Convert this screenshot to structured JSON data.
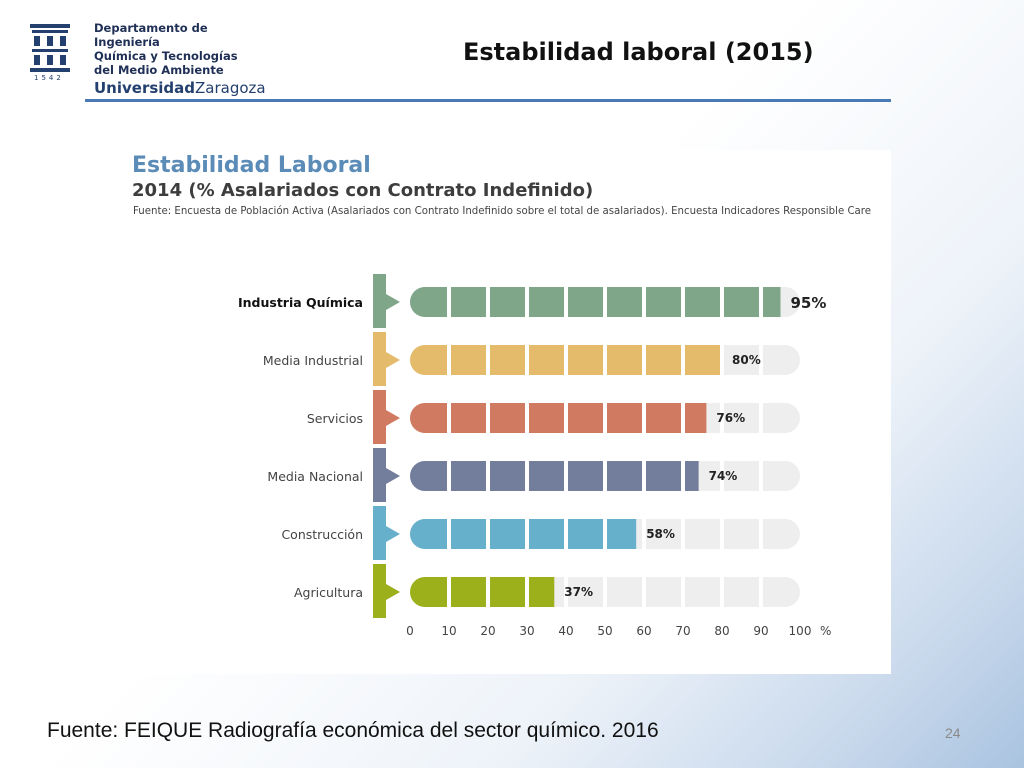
{
  "logo": {
    "lines": [
      "Departamento de Ingeniería",
      "Química y Tecnologías",
      "del Medio Ambiente"
    ],
    "university_bold": "Universidad",
    "university_rest": "Zaragoza",
    "year": "1542"
  },
  "slide": {
    "title": "Estabilidad laboral (2015)",
    "footer": "Fuente: FEIQUE Radiografía económica del sector químico. 2016",
    "page_number": "24"
  },
  "colors": {
    "title_rule": "#4a7ab5",
    "empty_segment": "#eeeeee"
  },
  "chart_data": {
    "type": "bar",
    "orientation": "horizontal",
    "title": "Estabilidad Laboral",
    "subtitle": "2014 (% Asalariados con Contrato Indefinido)",
    "source": "Fuente: Encuesta de Población Activa (Asalariados con Contrato Indefinido sobre el total de asalariados). Encuesta Indicadores Responsible Care",
    "categories": [
      "Industria Química",
      "Media Industrial",
      "Servicios",
      "Media Nacional",
      "Construcción",
      "Agricultura"
    ],
    "values": [
      95,
      80,
      76,
      74,
      58,
      37
    ],
    "value_labels": [
      "95%",
      "80%",
      "76%",
      "74%",
      "58%",
      "37%"
    ],
    "series_colors": [
      "#7fa688",
      "#e3bb6a",
      "#d17a62",
      "#737d9c",
      "#67b0cb",
      "#9bb01b"
    ],
    "xticks": [
      "0",
      "10",
      "20",
      "30",
      "40",
      "50",
      "60",
      "70",
      "80",
      "90",
      "100"
    ],
    "xunit": "%",
    "xlim": [
      0,
      100
    ],
    "highlight_category": "Industria Química"
  }
}
